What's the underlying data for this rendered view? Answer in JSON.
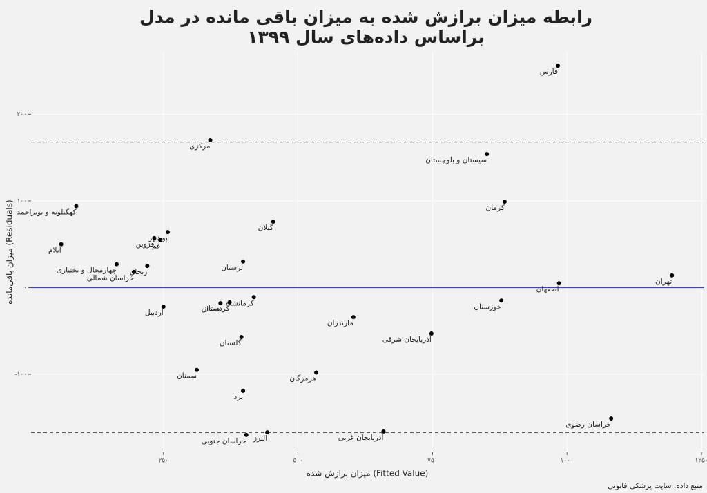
{
  "chart_data": {
    "type": "scatter",
    "title": [
      "رابطه میزان برازش شده به میزان باقی مانده در مدل",
      "براساس داده‌های سال ۱۳۹۹"
    ],
    "x_label": "میزان برازش شده (Fitted Value)",
    "y_label": "میزان باقی‌مانده (Residuals)",
    "caption": "منبع داده: سایت پزشکی قانونی",
    "labels": [
      "فارس",
      "مرکزی",
      "سیستان و بلوچستان",
      "کرمان",
      "کهگیلویه و بویراحمد",
      "گیلان",
      "بوشهر",
      "قزوین",
      "قم",
      "ایلام",
      "چهارمحال و بختیاری",
      "زنجان",
      "خراسان شمالی",
      "لرستان",
      "تهران",
      "اصفهان",
      "خوزستان",
      "کرمانشاه",
      "کردستان",
      "همدان",
      "اردبیل",
      "مازندران",
      "آذربایجان شرقی",
      "گلستان",
      "سمنان",
      "هرمزگان",
      "یزد",
      "خراسان رضوی",
      "آذربایجان غربی",
      "البرز",
      "خراسان جنوبی"
    ],
    "x": [
      983,
      337,
      851,
      884,
      88,
      454,
      258,
      233,
      244,
      60,
      163,
      220,
      195,
      398,
      1195,
      985,
      878,
      418,
      373,
      356,
      250,
      603,
      748,
      395,
      312,
      534,
      398,
      1082,
      659,
      443,
      404
    ],
    "values": [
      256,
      170,
      154,
      99,
      94,
      76,
      64,
      57,
      55,
      50,
      27,
      25,
      18,
      30,
      14,
      5,
      -15,
      -11,
      -17,
      -18,
      -22,
      -34,
      -53,
      -57,
      -95,
      -98,
      -119,
      -151,
      -166,
      -167,
      -170
    ],
    "color": "#000000",
    "xlim": [
      4,
      1255
    ],
    "ylim": [
      -190,
      272
    ],
    "xticks": [
      {
        "value": 250,
        "label": "۲۵۰"
      },
      {
        "value": 500,
        "label": "۵۰۰"
      },
      {
        "value": 750,
        "label": "۷۵۰"
      },
      {
        "value": 1000,
        "label": "۱۰۰۰"
      },
      {
        "value": 1250,
        "label": "۱۲۵۰"
      }
    ],
    "yticks": [
      {
        "value": -100,
        "label": "-۱۰۰"
      },
      {
        "value": 0,
        "label": "۰"
      },
      {
        "value": 100,
        "label": "۱۰۰"
      },
      {
        "value": 200,
        "label": "۲۰۰"
      }
    ],
    "hlines": [
      {
        "y": 168,
        "dashed": true,
        "color": "#222222"
      },
      {
        "y": -167,
        "dashed": true,
        "color": "#222222"
      },
      {
        "y": 0,
        "dashed": false,
        "color": "#4646a8"
      }
    ],
    "grid": true
  }
}
